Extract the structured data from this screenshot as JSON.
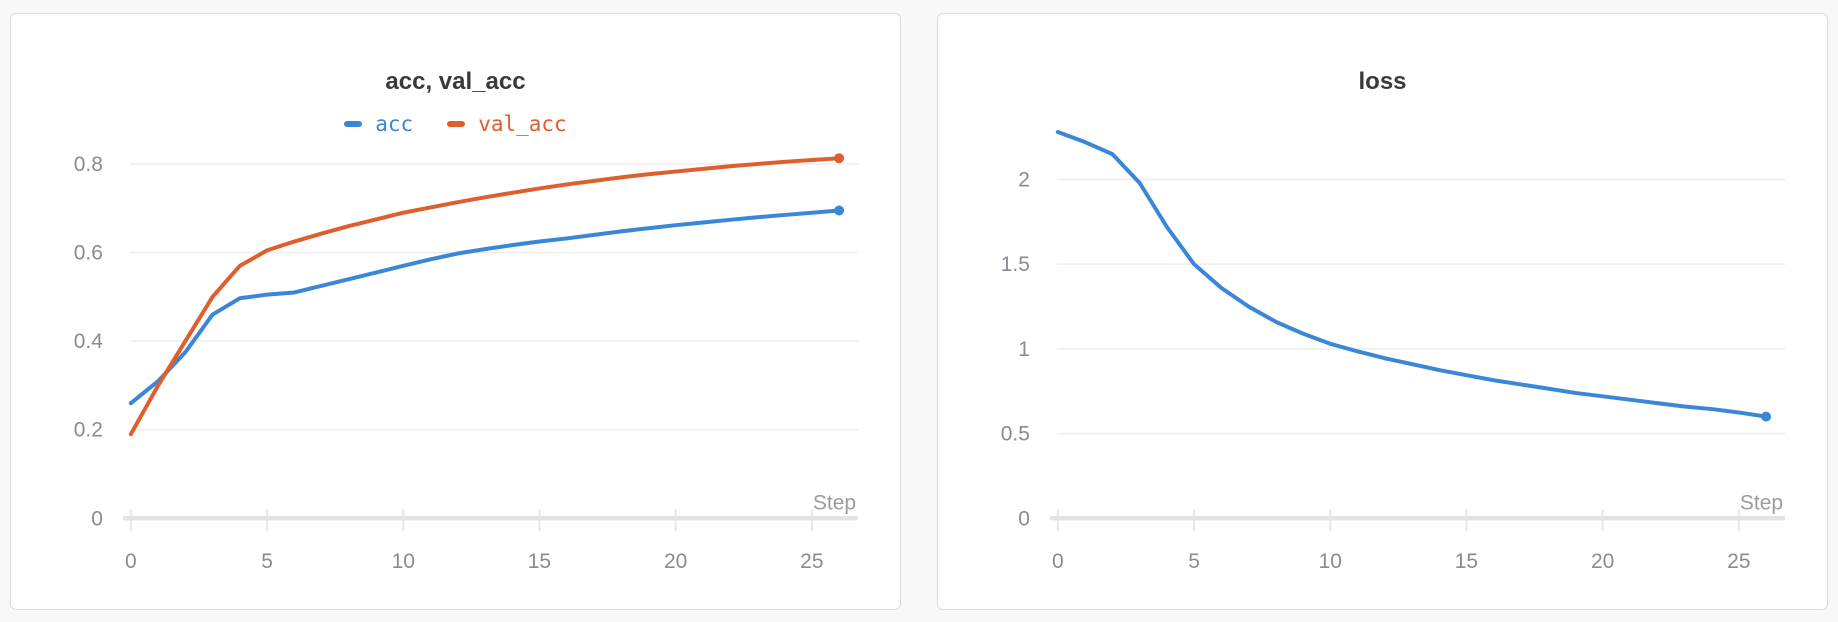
{
  "page": {
    "background": "#f8f8f8"
  },
  "colors": {
    "panel_border": "#dcdcdc",
    "panel_background": "#ffffff",
    "title_text": "#3a3a3a",
    "grid": "#ededed",
    "axis": "#e3e3e3",
    "axis_tick": "#e6e6e6",
    "tick_text": "#8a8a92",
    "axis_label_text": "#9b9ba3",
    "series_blue": "#3a87d7",
    "series_orange": "#dd5f2d"
  },
  "chart_data": [
    {
      "type": "line",
      "title": "acc, val_acc",
      "xlabel": "Step",
      "legend": true,
      "legend_position": "top",
      "grid": true,
      "end_dot": true,
      "x": [
        0,
        1,
        2,
        3,
        4,
        5,
        6,
        7,
        8,
        9,
        10,
        11,
        12,
        13,
        14,
        15,
        16,
        17,
        18,
        19,
        20,
        21,
        22,
        23,
        24,
        25,
        26
      ],
      "xticks": [
        0,
        5,
        10,
        15,
        20,
        25
      ],
      "yticks": [
        0,
        0.2,
        0.4,
        0.6,
        0.8
      ],
      "xlim": [
        0,
        26
      ],
      "ylim": [
        0,
        0.88
      ],
      "series": [
        {
          "name": "acc",
          "color": "#3a87d7",
          "values": [
            0.26,
            0.31,
            0.375,
            0.46,
            0.497,
            0.505,
            0.51,
            0.525,
            0.54,
            0.555,
            0.57,
            0.585,
            0.598,
            0.608,
            0.617,
            0.625,
            0.632,
            0.64,
            0.648,
            0.655,
            0.662,
            0.668,
            0.674,
            0.68,
            0.685,
            0.69,
            0.695
          ]
        },
        {
          "name": "val_acc",
          "color": "#dd5f2d",
          "values": [
            0.19,
            0.3,
            0.4,
            0.5,
            0.57,
            0.605,
            0.625,
            0.643,
            0.66,
            0.675,
            0.69,
            0.702,
            0.714,
            0.725,
            0.735,
            0.745,
            0.754,
            0.762,
            0.77,
            0.777,
            0.783,
            0.789,
            0.795,
            0.8,
            0.805,
            0.809,
            0.813
          ]
        }
      ]
    },
    {
      "type": "line",
      "title": "loss",
      "xlabel": "Step",
      "legend": false,
      "grid": true,
      "end_dot": true,
      "x": [
        0,
        1,
        2,
        3,
        4,
        5,
        6,
        7,
        8,
        9,
        10,
        11,
        12,
        13,
        14,
        15,
        16,
        17,
        18,
        19,
        20,
        21,
        22,
        23,
        24,
        25,
        26
      ],
      "xticks": [
        0,
        5,
        10,
        15,
        20,
        25
      ],
      "yticks": [
        0,
        0.5,
        1,
        1.5,
        2
      ],
      "xlim": [
        0,
        26
      ],
      "ylim": [
        0,
        2.3
      ],
      "series": [
        {
          "name": "loss",
          "color": "#3a87d7",
          "values": [
            2.28,
            2.22,
            2.15,
            1.98,
            1.72,
            1.5,
            1.36,
            1.25,
            1.16,
            1.09,
            1.03,
            0.985,
            0.945,
            0.91,
            0.875,
            0.845,
            0.815,
            0.79,
            0.765,
            0.74,
            0.72,
            0.7,
            0.68,
            0.66,
            0.645,
            0.625,
            0.6
          ]
        }
      ]
    }
  ]
}
